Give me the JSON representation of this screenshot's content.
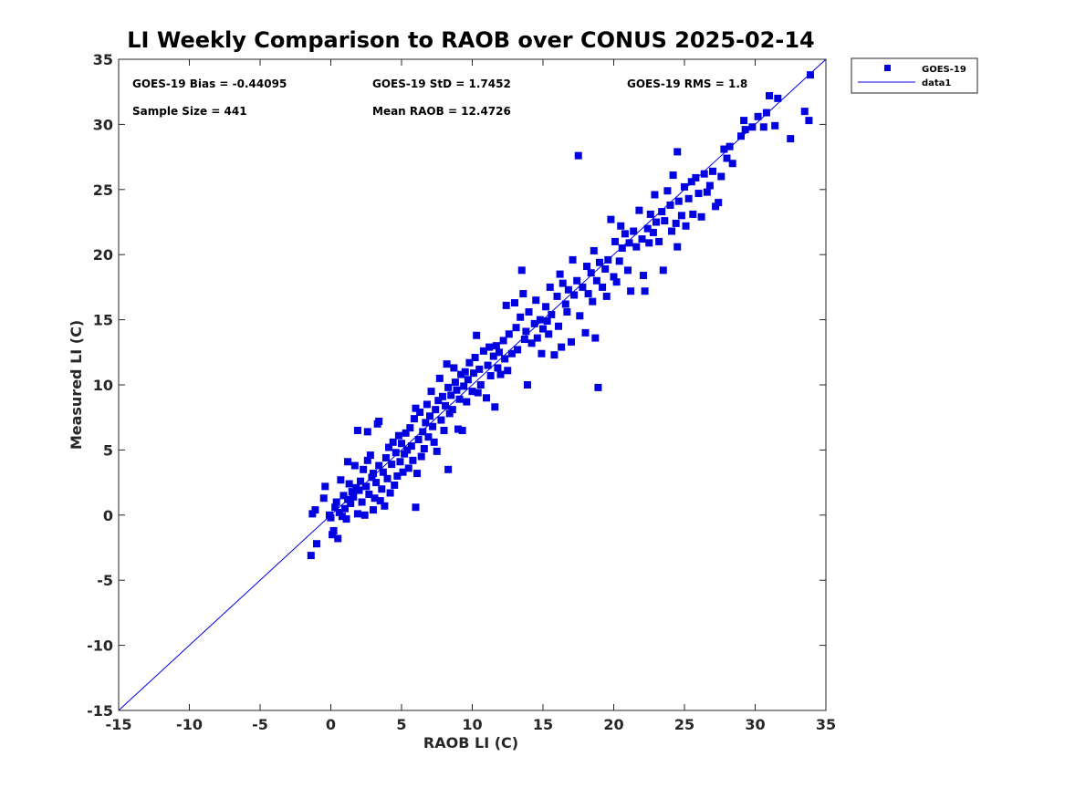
{
  "chart_data": {
    "type": "scatter",
    "title": "LI Weekly Comparison to RAOB over CONUS 2025-02-14",
    "xlabel": "RAOB LI (C)",
    "ylabel": "Measured LI (C)",
    "xlim": [
      -15,
      35
    ],
    "ylim": [
      -15,
      35
    ],
    "xticks": [
      -15,
      -10,
      -5,
      0,
      5,
      10,
      15,
      20,
      25,
      30,
      35
    ],
    "yticks": [
      -15,
      -10,
      -5,
      0,
      5,
      10,
      15,
      20,
      25,
      30,
      35
    ],
    "xtick_labels": [
      "-15",
      "-10",
      "-5",
      "0",
      "5",
      "10",
      "15",
      "20",
      "25",
      "30",
      "35"
    ],
    "ytick_labels": [
      "-15",
      "-10",
      "-5",
      "0",
      "5",
      "10",
      "15",
      "20",
      "25",
      "30",
      "35"
    ],
    "grid": false,
    "legend_position": "outside-top-right",
    "stats": {
      "bias": "GOES-19 Bias = -0.44095",
      "std": "GOES-19 StD = 1.7452",
      "rms": "GOES-19 RMS = 1.8",
      "sample_size": "Sample Size = 441",
      "mean_raob": "Mean RAOB = 12.4726"
    },
    "series": [
      {
        "name": "GOES-19",
        "marker": "square",
        "color": "#0000e0",
        "points": [
          [
            -1.4,
            -3.1
          ],
          [
            -1.3,
            0.1
          ],
          [
            -1.1,
            0.4
          ],
          [
            -1.0,
            -2.2
          ],
          [
            -0.5,
            1.3
          ],
          [
            -0.4,
            2.2
          ],
          [
            -0.1,
            0.0
          ],
          [
            0.0,
            -0.2
          ],
          [
            0.1,
            -1.5
          ],
          [
            0.2,
            -1.2
          ],
          [
            0.3,
            0.6
          ],
          [
            0.4,
            1.0
          ],
          [
            0.5,
            -1.8
          ],
          [
            0.6,
            0.2
          ],
          [
            0.7,
            2.7
          ],
          [
            0.8,
            -0.1
          ],
          [
            0.9,
            1.5
          ],
          [
            1.0,
            0.5
          ],
          [
            1.1,
            -0.3
          ],
          [
            1.2,
            1.2
          ],
          [
            1.2,
            4.1
          ],
          [
            1.3,
            2.4
          ],
          [
            1.4,
            0.9
          ],
          [
            1.5,
            1.8
          ],
          [
            1.6,
            1.4
          ],
          [
            1.7,
            3.8
          ],
          [
            1.8,
            2.1
          ],
          [
            1.9,
            6.5
          ],
          [
            1.9,
            0.1
          ],
          [
            2.0,
            1.9
          ],
          [
            2.1,
            2.6
          ],
          [
            2.2,
            1.0
          ],
          [
            2.3,
            3.5
          ],
          [
            2.4,
            0.0
          ],
          [
            2.5,
            2.2
          ],
          [
            2.6,
            6.4
          ],
          [
            2.6,
            4.2
          ],
          [
            2.7,
            1.6
          ],
          [
            2.8,
            4.6
          ],
          [
            2.9,
            2.9
          ],
          [
            3.0,
            0.4
          ],
          [
            3.0,
            3.2
          ],
          [
            3.1,
            1.3
          ],
          [
            3.2,
            2.5
          ],
          [
            3.3,
            7.0
          ],
          [
            3.4,
            7.2
          ],
          [
            3.4,
            3.8
          ],
          [
            3.5,
            1.1
          ],
          [
            3.6,
            2.0
          ],
          [
            3.7,
            3.3
          ],
          [
            3.8,
            0.7
          ],
          [
            3.9,
            4.4
          ],
          [
            4.0,
            2.8
          ],
          [
            4.1,
            5.2
          ],
          [
            4.2,
            1.7
          ],
          [
            4.3,
            3.9
          ],
          [
            4.4,
            5.6
          ],
          [
            4.5,
            2.3
          ],
          [
            4.6,
            4.8
          ],
          [
            4.7,
            3.0
          ],
          [
            4.8,
            6.1
          ],
          [
            4.9,
            4.1
          ],
          [
            5.0,
            5.5
          ],
          [
            5.1,
            3.3
          ],
          [
            5.2,
            4.7
          ],
          [
            5.3,
            6.3
          ],
          [
            5.4,
            5.0
          ],
          [
            5.5,
            3.6
          ],
          [
            5.6,
            6.7
          ],
          [
            5.7,
            5.3
          ],
          [
            5.8,
            4.2
          ],
          [
            5.9,
            7.4
          ],
          [
            6.0,
            0.6
          ],
          [
            6.0,
            8.2
          ],
          [
            6.1,
            3.2
          ],
          [
            6.2,
            5.8
          ],
          [
            6.3,
            7.9
          ],
          [
            6.4,
            4.5
          ],
          [
            6.5,
            6.4
          ],
          [
            6.6,
            5.1
          ],
          [
            6.7,
            7.1
          ],
          [
            6.8,
            8.5
          ],
          [
            6.9,
            6.0
          ],
          [
            7.0,
            7.6
          ],
          [
            7.1,
            9.5
          ],
          [
            7.2,
            6.8
          ],
          [
            7.3,
            5.6
          ],
          [
            7.4,
            8.1
          ],
          [
            7.5,
            4.9
          ],
          [
            7.6,
            8.8
          ],
          [
            7.7,
            10.5
          ],
          [
            7.8,
            7.3
          ],
          [
            7.9,
            9.1
          ],
          [
            8.0,
            6.5
          ],
          [
            8.1,
            8.4
          ],
          [
            8.2,
            11.6
          ],
          [
            8.3,
            3.5
          ],
          [
            8.3,
            9.8
          ],
          [
            8.4,
            7.8
          ],
          [
            8.5,
            9.2
          ],
          [
            8.6,
            8.1
          ],
          [
            8.7,
            11.3
          ],
          [
            8.8,
            10.2
          ],
          [
            8.9,
            9.6
          ],
          [
            9.0,
            6.6
          ],
          [
            9.1,
            8.9
          ],
          [
            9.2,
            10.8
          ],
          [
            9.3,
            6.5
          ],
          [
            9.4,
            9.9
          ],
          [
            9.5,
            11.0
          ],
          [
            9.6,
            8.7
          ],
          [
            9.7,
            10.4
          ],
          [
            9.8,
            11.7
          ],
          [
            10.0,
            9.5
          ],
          [
            10.1,
            10.9
          ],
          [
            10.2,
            12.1
          ],
          [
            10.3,
            13.8
          ],
          [
            10.4,
            9.4
          ],
          [
            10.5,
            11.2
          ],
          [
            10.6,
            10.0
          ],
          [
            10.8,
            12.6
          ],
          [
            11.0,
            9.0
          ],
          [
            11.1,
            11.5
          ],
          [
            11.2,
            12.9
          ],
          [
            11.3,
            10.7
          ],
          [
            11.5,
            12.2
          ],
          [
            11.6,
            8.3
          ],
          [
            11.7,
            13.0
          ],
          [
            11.8,
            11.3
          ],
          [
            11.9,
            12.5
          ],
          [
            12.0,
            10.8
          ],
          [
            12.2,
            13.4
          ],
          [
            12.3,
            12.0
          ],
          [
            12.4,
            16.1
          ],
          [
            12.5,
            11.1
          ],
          [
            12.6,
            13.9
          ],
          [
            12.8,
            12.4
          ],
          [
            13.0,
            16.3
          ],
          [
            13.1,
            14.4
          ],
          [
            13.2,
            12.7
          ],
          [
            13.4,
            15.2
          ],
          [
            13.5,
            18.8
          ],
          [
            13.6,
            17.0
          ],
          [
            13.7,
            13.5
          ],
          [
            13.8,
            14.1
          ],
          [
            13.9,
            10.0
          ],
          [
            14.0,
            15.6
          ],
          [
            14.2,
            13.2
          ],
          [
            14.4,
            14.7
          ],
          [
            14.5,
            16.5
          ],
          [
            14.6,
            13.6
          ],
          [
            14.8,
            15.0
          ],
          [
            14.9,
            12.4
          ],
          [
            15.0,
            14.3
          ],
          [
            15.2,
            16.0
          ],
          [
            15.3,
            14.9
          ],
          [
            15.4,
            13.9
          ],
          [
            15.5,
            17.5
          ],
          [
            15.6,
            15.4
          ],
          [
            15.8,
            12.3
          ],
          [
            16.0,
            16.8
          ],
          [
            16.1,
            14.5
          ],
          [
            16.2,
            18.5
          ],
          [
            16.3,
            12.9
          ],
          [
            16.4,
            17.8
          ],
          [
            16.6,
            16.2
          ],
          [
            16.7,
            15.6
          ],
          [
            16.8,
            17.3
          ],
          [
            17.0,
            13.3
          ],
          [
            17.1,
            19.6
          ],
          [
            17.2,
            16.9
          ],
          [
            17.4,
            18.0
          ],
          [
            17.5,
            27.6
          ],
          [
            17.6,
            15.3
          ],
          [
            17.8,
            17.5
          ],
          [
            18.0,
            14.0
          ],
          [
            18.1,
            19.1
          ],
          [
            18.2,
            17.0
          ],
          [
            18.4,
            18.6
          ],
          [
            18.5,
            16.4
          ],
          [
            18.6,
            20.3
          ],
          [
            18.7,
            13.6
          ],
          [
            18.8,
            18.0
          ],
          [
            18.9,
            9.8
          ],
          [
            19.0,
            19.4
          ],
          [
            19.2,
            17.5
          ],
          [
            19.4,
            18.9
          ],
          [
            19.5,
            16.8
          ],
          [
            19.6,
            19.6
          ],
          [
            19.8,
            22.7
          ],
          [
            20.0,
            18.3
          ],
          [
            20.1,
            21.0
          ],
          [
            20.2,
            17.9
          ],
          [
            20.4,
            19.5
          ],
          [
            20.5,
            22.2
          ],
          [
            20.6,
            20.5
          ],
          [
            20.8,
            21.6
          ],
          [
            21.0,
            18.8
          ],
          [
            21.1,
            20.9
          ],
          [
            21.2,
            17.2
          ],
          [
            21.4,
            21.8
          ],
          [
            21.6,
            20.6
          ],
          [
            21.8,
            23.4
          ],
          [
            22.0,
            21.2
          ],
          [
            22.1,
            18.4
          ],
          [
            22.2,
            17.2
          ],
          [
            22.4,
            22.0
          ],
          [
            22.5,
            20.9
          ],
          [
            22.6,
            23.1
          ],
          [
            22.8,
            21.7
          ],
          [
            22.9,
            24.6
          ],
          [
            23.0,
            22.5
          ],
          [
            23.2,
            21.0
          ],
          [
            23.4,
            23.3
          ],
          [
            23.5,
            18.8
          ],
          [
            23.6,
            22.6
          ],
          [
            23.8,
            24.9
          ],
          [
            24.0,
            23.8
          ],
          [
            24.1,
            21.8
          ],
          [
            24.2,
            26.1
          ],
          [
            24.4,
            22.4
          ],
          [
            24.5,
            20.6
          ],
          [
            24.5,
            27.9
          ],
          [
            24.6,
            24.1
          ],
          [
            24.8,
            23.0
          ],
          [
            25.0,
            25.2
          ],
          [
            25.1,
            22.2
          ],
          [
            25.3,
            24.3
          ],
          [
            25.5,
            25.6
          ],
          [
            25.6,
            23.1
          ],
          [
            25.8,
            25.9
          ],
          [
            26.0,
            24.7
          ],
          [
            26.2,
            22.9
          ],
          [
            26.4,
            26.2
          ],
          [
            26.6,
            24.8
          ],
          [
            26.8,
            25.3
          ],
          [
            27.0,
            26.4
          ],
          [
            27.2,
            23.7
          ],
          [
            27.4,
            24.0
          ],
          [
            27.6,
            26.0
          ],
          [
            27.8,
            28.1
          ],
          [
            28.0,
            27.4
          ],
          [
            28.2,
            28.3
          ],
          [
            28.4,
            27.0
          ],
          [
            29.0,
            29.1
          ],
          [
            29.2,
            30.3
          ],
          [
            29.3,
            29.6
          ],
          [
            29.8,
            29.8
          ],
          [
            30.2,
            30.6
          ],
          [
            30.6,
            29.8
          ],
          [
            30.8,
            30.9
          ],
          [
            31.0,
            32.2
          ],
          [
            31.4,
            29.9
          ],
          [
            31.6,
            32.0
          ],
          [
            32.5,
            28.9
          ],
          [
            33.5,
            31.0
          ],
          [
            33.8,
            30.3
          ],
          [
            33.9,
            33.8
          ]
        ]
      },
      {
        "name": "data1",
        "type": "line",
        "color": "#0000e0",
        "x": [
          -15,
          35
        ],
        "y": [
          -15,
          35
        ]
      }
    ]
  }
}
